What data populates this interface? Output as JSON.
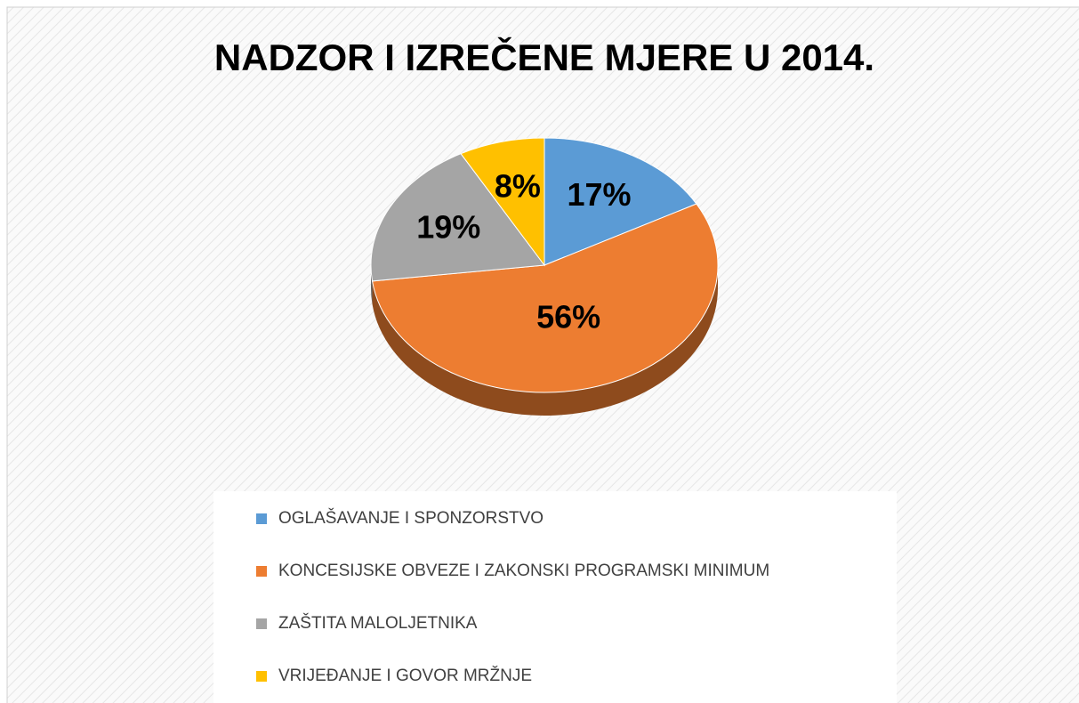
{
  "chart_data": {
    "type": "pie",
    "title": "NADZOR I IZREČENE MJERE U 2014.",
    "categories": [
      "OGLAŠAVANJE I SPONZORSTVO",
      "KONCESIJSKE OBVEZE I ZAKONSKI PROGRAMSKI MINIMUM",
      "ZAŠTITA MALOLJETNIKA",
      "VRIJEĐANJE I GOVOR MRŽNJE"
    ],
    "values": [
      17,
      56,
      19,
      8
    ],
    "value_labels": [
      "17%",
      "56%",
      "19%",
      "8%"
    ],
    "colors": [
      "#5b9bd5",
      "#ed7d31",
      "#a5a5a5",
      "#ffc000"
    ],
    "legend": "bottom"
  }
}
